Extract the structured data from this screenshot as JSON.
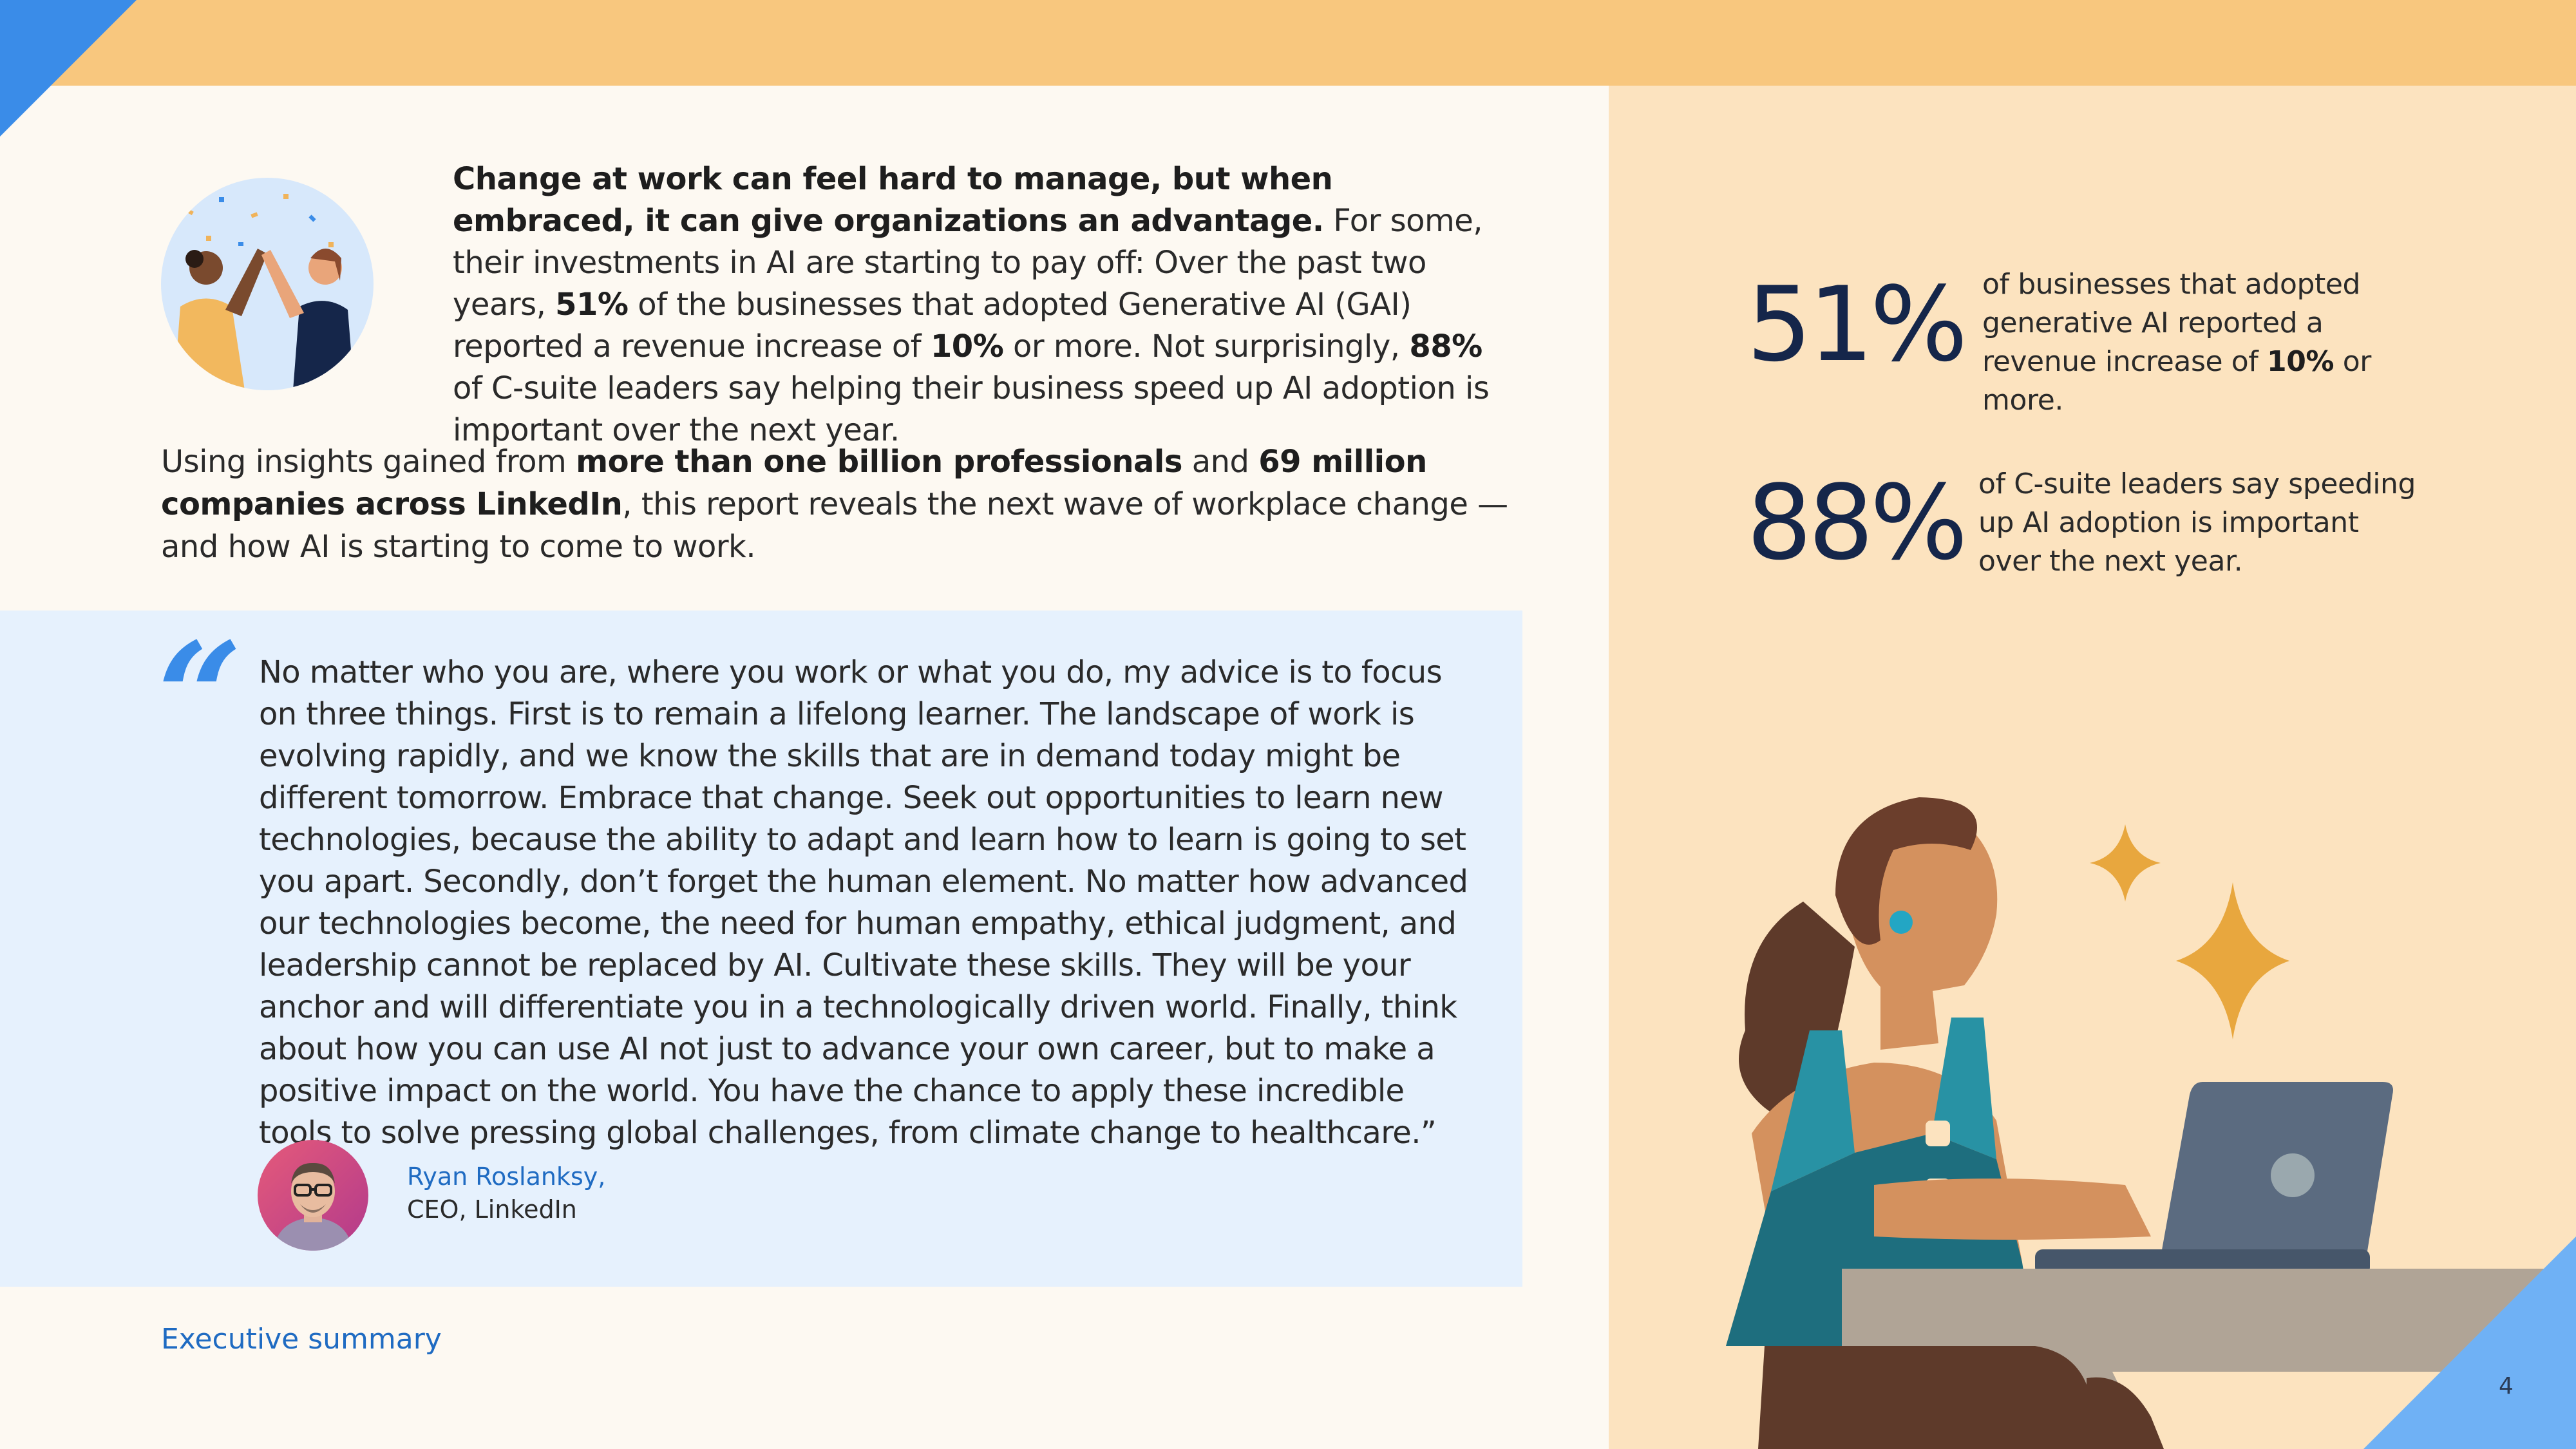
{
  "intro": {
    "lead_bold": "Change at work can feel hard to manage, but when embraced, it can give organizations an advantage.",
    "text_1": " For some, their investments in AI are starting to pay off: Over the past two years, ",
    "bold_51": "51%",
    "text_2": " of the businesses that adopted Generative AI (GAI) reported a revenue increase of ",
    "bold_10": "10%",
    "text_3": " or more. Not surprisingly, ",
    "bold_88": "88%",
    "text_4": " of C-suite leaders say helping their business speed up AI adoption is important over the next year."
  },
  "paragraph2": {
    "text_1": "Using insights gained from ",
    "bold_1": "more than one billion professionals",
    "text_2": " and ",
    "bold_2": "69 million companies across LinkedIn",
    "text_3": ", this report reveals the next wave of workplace change — and how AI is starting to come to work."
  },
  "quote": {
    "mark": "“",
    "text": "No matter who you are, where you work or what you do, my advice is to focus on three things. First is to remain a lifelong learner. The landscape of work is evolving rapidly, and we know the skills that are in demand today might be different tomorrow. Embrace that change. Seek out opportunities to learn new technologies, because the ability to adapt and learn how to learn is going to set you apart. Secondly, don’t forget the human element. No matter how advanced our technologies become, the need for human empathy, ethical judgment, and leadership cannot be replaced by AI. Cultivate these skills. They will be your anchor and will differentiate you in a technologically driven world. Finally, think about how you can use AI not just to advance your own career, but to make a positive impact on the world. You have the chance to apply these incredible tools to solve pressing global challenges, from climate change to healthcare.”",
    "author_name": "Ryan Roslanksy,",
    "author_title": "CEO, LinkedIn"
  },
  "footer": {
    "section_label": "Executive summary",
    "page_number": "4"
  },
  "stats": [
    {
      "value": "51%",
      "desc_1": "of businesses that adopted generative AI reported a revenue increase of ",
      "desc_bold": "10%",
      "desc_2": " or more."
    },
    {
      "value": "88%",
      "desc_1": "of C-suite leaders say speeding up AI adoption is important over the next year.",
      "desc_bold": "",
      "desc_2": ""
    }
  ],
  "colors": {
    "top_band": "#F8C77E",
    "accent_blue": "#3A8CE8",
    "right_panel": "#FCE3BF",
    "quote_bg": "#E6F1FD",
    "stat_navy": "#15264A"
  },
  "icons": {
    "intro_illustration": "high-five-illustration",
    "hero_illustration": "woman-laptop-sparkles-illustration",
    "avatar": "ceo-avatar"
  }
}
